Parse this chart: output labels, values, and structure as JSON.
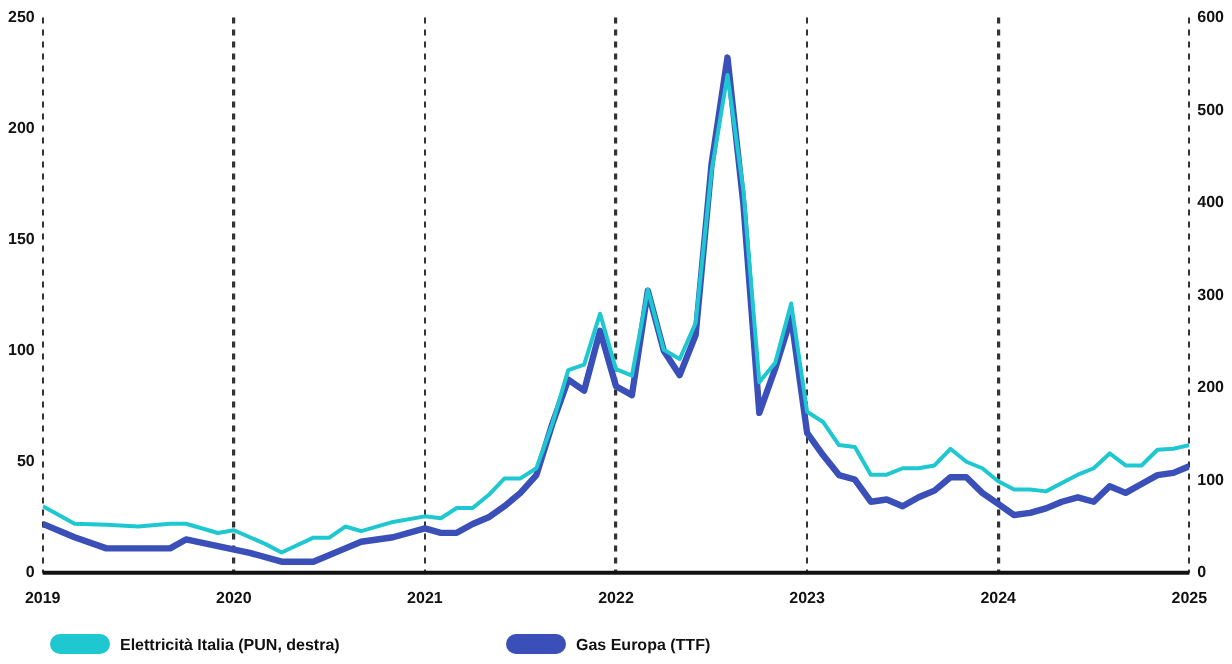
{
  "chart_data": {
    "type": "line",
    "xlim": [
      "2019-01",
      "2025-01"
    ],
    "xticks": [
      "2019",
      "2020",
      "2021",
      "2022",
      "2023",
      "2024",
      "2025"
    ],
    "ylim": [
      0,
      250
    ],
    "yticks": [
      0,
      50,
      100,
      150,
      200,
      250
    ],
    "y2lim": [
      0,
      600
    ],
    "y2ticks": [
      0,
      100,
      200,
      300,
      400,
      500,
      600
    ],
    "grid": "x",
    "legend": "bottom",
    "marker": "none",
    "line_style": "solid",
    "series": [
      {
        "name": "Elettricità Italia (PUN, destra)",
        "color": "#1fc8d0",
        "axis": "y2",
        "x": [
          "2019-01",
          "2019-03",
          "2019-05",
          "2019-07",
          "2019-09",
          "2019-10",
          "2019-12",
          "2020-01",
          "2020-03",
          "2020-04",
          "2020-06",
          "2020-07",
          "2020-08",
          "2020-09",
          "2020-11",
          "2021-01",
          "2021-02",
          "2021-03",
          "2021-04",
          "2021-05",
          "2021-06",
          "2021-07",
          "2021-08",
          "2021-09",
          "2021-10",
          "2021-11",
          "2021-12",
          "2022-01",
          "2022-02",
          "2022-03",
          "2022-04",
          "2022-05",
          "2022-06",
          "2022-07",
          "2022-08",
          "2022-09",
          "2022-10",
          "2022-11",
          "2022-12",
          "2023-01",
          "2023-02",
          "2023-03",
          "2023-04",
          "2023-05",
          "2023-06",
          "2023-07",
          "2023-08",
          "2023-09",
          "2023-10",
          "2023-11",
          "2023-12",
          "2024-01",
          "2024-02",
          "2024-03",
          "2024-04",
          "2024-05",
          "2024-06",
          "2024-07",
          "2024-08",
          "2024-09",
          "2024-10",
          "2024-11",
          "2024-12",
          "2025-01"
        ],
        "values": [
          72,
          53,
          52,
          50,
          53,
          53,
          43,
          46,
          31,
          22,
          38,
          38,
          50,
          45,
          55,
          61,
          59,
          70,
          70,
          84,
          102,
          102,
          113,
          161,
          219,
          225,
          280,
          220,
          213,
          306,
          241,
          231,
          270,
          434,
          538,
          413,
          206,
          227,
          291,
          174,
          163,
          138,
          136,
          106,
          106,
          113,
          113,
          116,
          134,
          120,
          113,
          99,
          90,
          90,
          88,
          97,
          106,
          113,
          129,
          116,
          116,
          133,
          134,
          138
        ]
      },
      {
        "name": "Gas Europa (TTF)",
        "color": "#3a50b8",
        "x": [
          "2019-01",
          "2019-03",
          "2019-05",
          "2019-07",
          "2019-09",
          "2019-10",
          "2019-12",
          "2020-02",
          "2020-04",
          "2020-06",
          "2020-08",
          "2020-09",
          "2020-11",
          "2021-01",
          "2021-02",
          "2021-03",
          "2021-04",
          "2021-05",
          "2021-06",
          "2021-07",
          "2021-08",
          "2021-09",
          "2021-10",
          "2021-11",
          "2021-12",
          "2022-01",
          "2022-02",
          "2022-03",
          "2022-04",
          "2022-05",
          "2022-06",
          "2022-07",
          "2022-08",
          "2022-09",
          "2022-10",
          "2022-11",
          "2022-12",
          "2023-01",
          "2023-02",
          "2023-03",
          "2023-04",
          "2023-05",
          "2023-06",
          "2023-07",
          "2023-08",
          "2023-09",
          "2023-10",
          "2023-11",
          "2023-12",
          "2024-01",
          "2024-02",
          "2024-03",
          "2024-04",
          "2024-05",
          "2024-06",
          "2024-07",
          "2024-08",
          "2024-09",
          "2024-10",
          "2024-11",
          "2024-12",
          "2025-01"
        ],
        "values": [
          22,
          16,
          11,
          11,
          11,
          15,
          12,
          9,
          5,
          5,
          11,
          14,
          16,
          20,
          18,
          18,
          22,
          25,
          30,
          36,
          44,
          67,
          87,
          82,
          109,
          84,
          80,
          127,
          100,
          89,
          107,
          184,
          232,
          166,
          72,
          92,
          115,
          63,
          53,
          44,
          42,
          32,
          33,
          30,
          34,
          37,
          43,
          43,
          36,
          31,
          26,
          27,
          29,
          32,
          34,
          32,
          39,
          36,
          40,
          44,
          45,
          48
        ]
      }
    ]
  }
}
